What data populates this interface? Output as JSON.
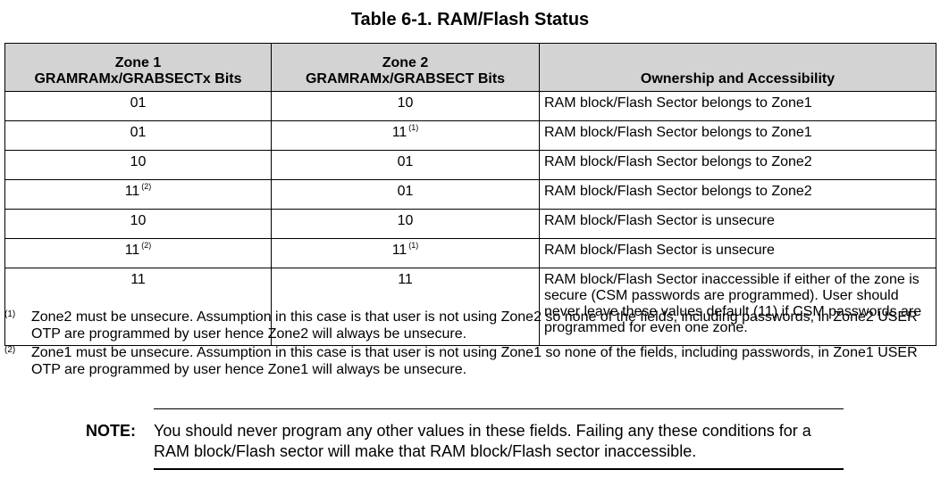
{
  "title": "Table 6-1. RAM/Flash Status",
  "table": {
    "headers": {
      "zone1_line1": "Zone 1",
      "zone1_line2": "GRAMRAMx/GRABSECTx Bits",
      "zone2_line1": "Zone 2",
      "zone2_line2": "GRAMRAMx/GRABSECT Bits",
      "ownership": "Ownership and Accessibility"
    },
    "rows": [
      {
        "zone1": "01",
        "zone1_fn": "",
        "zone2": "10",
        "zone2_fn": "",
        "ownership": "RAM block/Flash Sector belongs to Zone1"
      },
      {
        "zone1": "01",
        "zone1_fn": "",
        "zone2": "11",
        "zone2_fn": "(1)",
        "ownership": "RAM block/Flash Sector belongs to Zone1"
      },
      {
        "zone1": "10",
        "zone1_fn": "",
        "zone2": "01",
        "zone2_fn": "",
        "ownership": "RAM block/Flash Sector belongs to Zone2"
      },
      {
        "zone1": "11",
        "zone1_fn": "(2)",
        "zone2": "01",
        "zone2_fn": "",
        "ownership": "RAM block/Flash Sector belongs to Zone2"
      },
      {
        "zone1": "10",
        "zone1_fn": "",
        "zone2": "10",
        "zone2_fn": "",
        "ownership": "RAM block/Flash Sector is unsecure"
      },
      {
        "zone1": "11",
        "zone1_fn": "(2)",
        "zone2": "11",
        "zone2_fn": "(1)",
        "ownership": "RAM block/Flash Sector is unsecure"
      },
      {
        "zone1": "11",
        "zone1_fn": "",
        "zone2": "11",
        "zone2_fn": "",
        "ownership": "RAM block/Flash Sector inaccessible if either of the zone is secure (CSM passwords are programmed). User should never leave these values default (11) if CSM passwords are programmed for even one zone."
      }
    ]
  },
  "footnotes": [
    {
      "mark": "(1)",
      "text": "Zone2 must be unsecure. Assumption in this case is that user is not using Zone2 so none of the fields, including passwords, in Zone2 USER OTP are programmed by user hence Zone2 will always be unsecure."
    },
    {
      "mark": "(2)",
      "text": "Zone1 must be unsecure. Assumption in this case is that user is not using Zone1 so none of the fields, including passwords, in Zone1 USER OTP are programmed by user hence Zone1 will always be unsecure."
    }
  ],
  "note": {
    "label": "NOTE:",
    "text": "You should never program any other values in these fields. Failing any these conditions for a RAM block/Flash sector will make that RAM block/Flash sector inaccessible."
  }
}
